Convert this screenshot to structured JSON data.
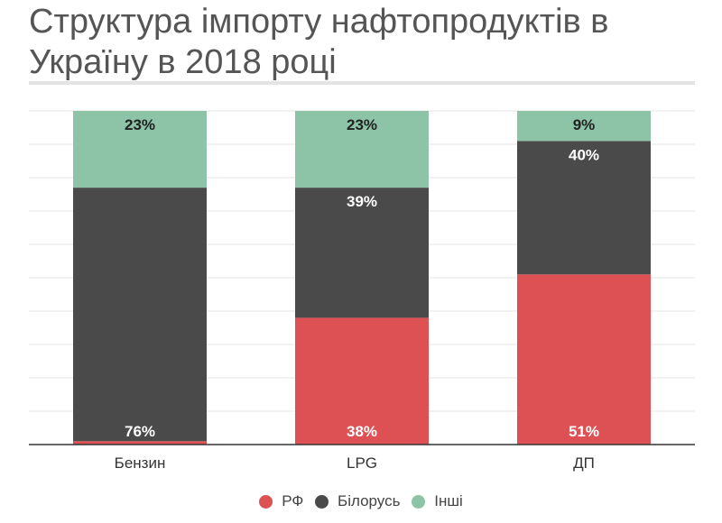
{
  "chart_data": {
    "type": "bar",
    "stacked": true,
    "title": "Структура імпорту нафтопродуктів в Україну в 2018 році",
    "categories": [
      "Бензин",
      "LPG",
      "ДП"
    ],
    "series": [
      {
        "name": "РФ",
        "color": "#dd5155",
        "values": [
          1,
          38,
          51
        ],
        "labels": [
          "",
          "38%",
          "51%"
        ]
      },
      {
        "name": "Білорусь",
        "color": "#4a4a4a",
        "values": [
          76,
          39,
          40
        ],
        "labels": [
          "76%",
          "39%",
          "40%"
        ]
      },
      {
        "name": "Інші",
        "color": "#8dc3a7",
        "values": [
          23,
          23,
          9
        ],
        "labels": [
          "23%",
          "23%",
          "9%"
        ]
      }
    ],
    "ylim": [
      0,
      100
    ],
    "grid": true,
    "legend": "bottom"
  }
}
